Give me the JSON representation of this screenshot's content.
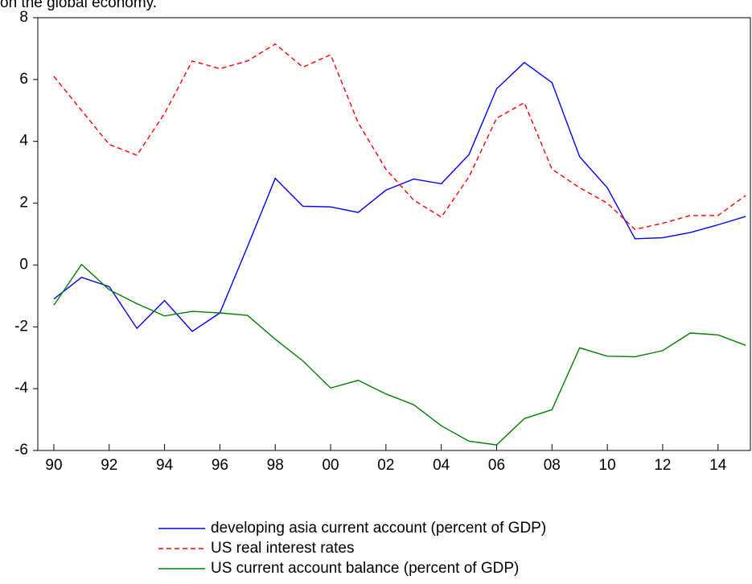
{
  "chart_data": {
    "type": "line",
    "annotation": "on the global economy.",
    "x": [
      1990,
      1991,
      1992,
      1993,
      1994,
      1995,
      1996,
      1997,
      1998,
      1999,
      2000,
      2001,
      2002,
      2003,
      2004,
      2005,
      2006,
      2007,
      2008,
      2009,
      2010,
      2011,
      2012,
      2013,
      2014,
      2015
    ],
    "series": [
      {
        "name": "developing asia current account (percent of GDP)",
        "color": "#0000ff",
        "dash": false,
        "values": [
          -1.1,
          -0.4,
          -0.7,
          -2.05,
          -1.15,
          -2.15,
          -1.55,
          0.6,
          2.8,
          1.9,
          1.88,
          1.7,
          2.42,
          2.78,
          2.63,
          3.57,
          5.7,
          6.55,
          5.9,
          3.5,
          2.5,
          0.85,
          0.88,
          1.05,
          1.3,
          1.57
        ]
      },
      {
        "name": "US real interest rates",
        "color": "#ff0000",
        "dash": true,
        "values": [
          6.1,
          5.0,
          3.9,
          3.55,
          4.9,
          6.6,
          6.35,
          6.6,
          7.15,
          6.4,
          6.8,
          4.6,
          3.1,
          2.1,
          1.55,
          2.85,
          4.75,
          5.25,
          3.1,
          2.5,
          2.0,
          1.15,
          1.35,
          1.6,
          1.6,
          2.25
        ]
      },
      {
        "name": "US current account balance (percent of GDP)",
        "color": "#008000",
        "dash": false,
        "values": [
          -1.3,
          0.02,
          -0.8,
          -1.25,
          -1.65,
          -1.5,
          -1.55,
          -1.63,
          -2.4,
          -3.1,
          -3.98,
          -3.73,
          -4.17,
          -4.52,
          -5.2,
          -5.7,
          -5.82,
          -4.97,
          -4.68,
          -2.68,
          -2.95,
          -2.97,
          -2.77,
          -2.2,
          -2.26,
          -2.6
        ]
      }
    ],
    "xlim": [
      1989.42,
      2015.17
    ],
    "xticks": [
      {
        "value": 1990,
        "label": "90"
      },
      {
        "value": 1992,
        "label": "92"
      },
      {
        "value": 1994,
        "label": "94"
      },
      {
        "value": 1996,
        "label": "96"
      },
      {
        "value": 1998,
        "label": "98"
      },
      {
        "value": 2000,
        "label": "00"
      },
      {
        "value": 2002,
        "label": "02"
      },
      {
        "value": 2004,
        "label": "04"
      },
      {
        "value": 2006,
        "label": "06"
      },
      {
        "value": 2008,
        "label": "08"
      },
      {
        "value": 2010,
        "label": "10"
      },
      {
        "value": 2012,
        "label": "12"
      },
      {
        "value": 2014,
        "label": "14"
      }
    ],
    "ylim": [
      -6,
      8
    ],
    "yticks": [
      -6,
      -4,
      -2,
      0,
      2,
      4,
      6,
      8
    ],
    "grid": false,
    "legend": "bottom"
  }
}
